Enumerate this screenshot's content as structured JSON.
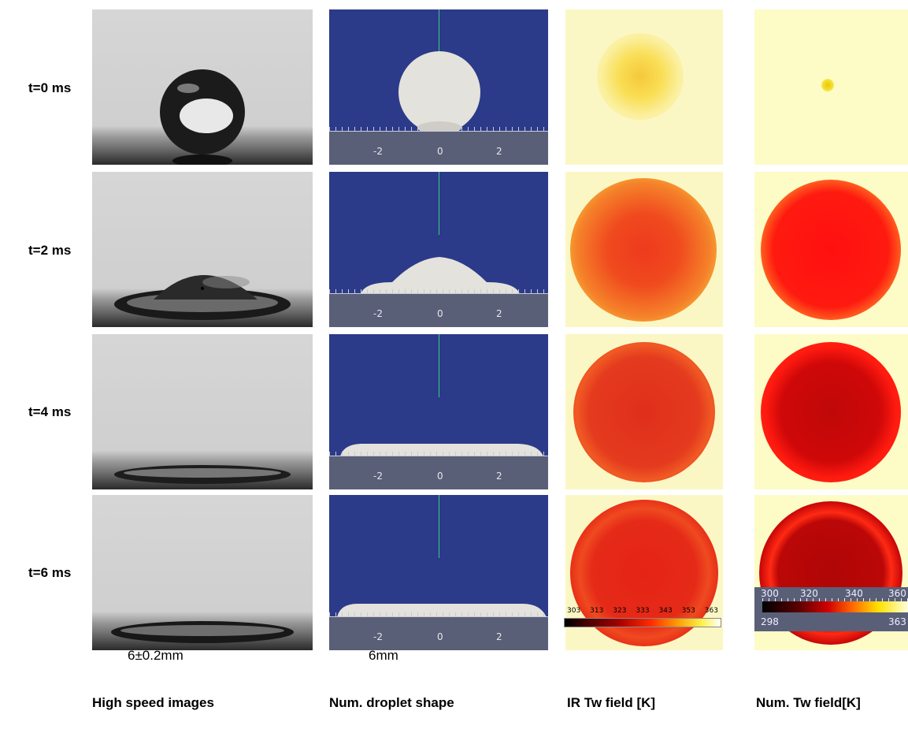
{
  "rows": [
    "t=0 ms",
    "t=2 ms",
    "t=4 ms",
    "t=6 ms"
  ],
  "columns": {
    "high_speed": "High speed images",
    "num_shape": "Num. droplet shape",
    "ir_field": "IR Tw field [K]",
    "num_field": "Num. Tw field[K]"
  },
  "captions": {
    "high_speed": "6±0.2mm",
    "num_shape": "6mm"
  },
  "axis_ticks": [
    "-2",
    "0",
    "2"
  ],
  "ir_colorbar": [
    "303",
    "313",
    "323",
    "333",
    "343",
    "353",
    "363"
  ],
  "num_colorbar": {
    "major": [
      "300",
      "320",
      "340",
      "360"
    ],
    "min": "298",
    "max": "363"
  }
}
